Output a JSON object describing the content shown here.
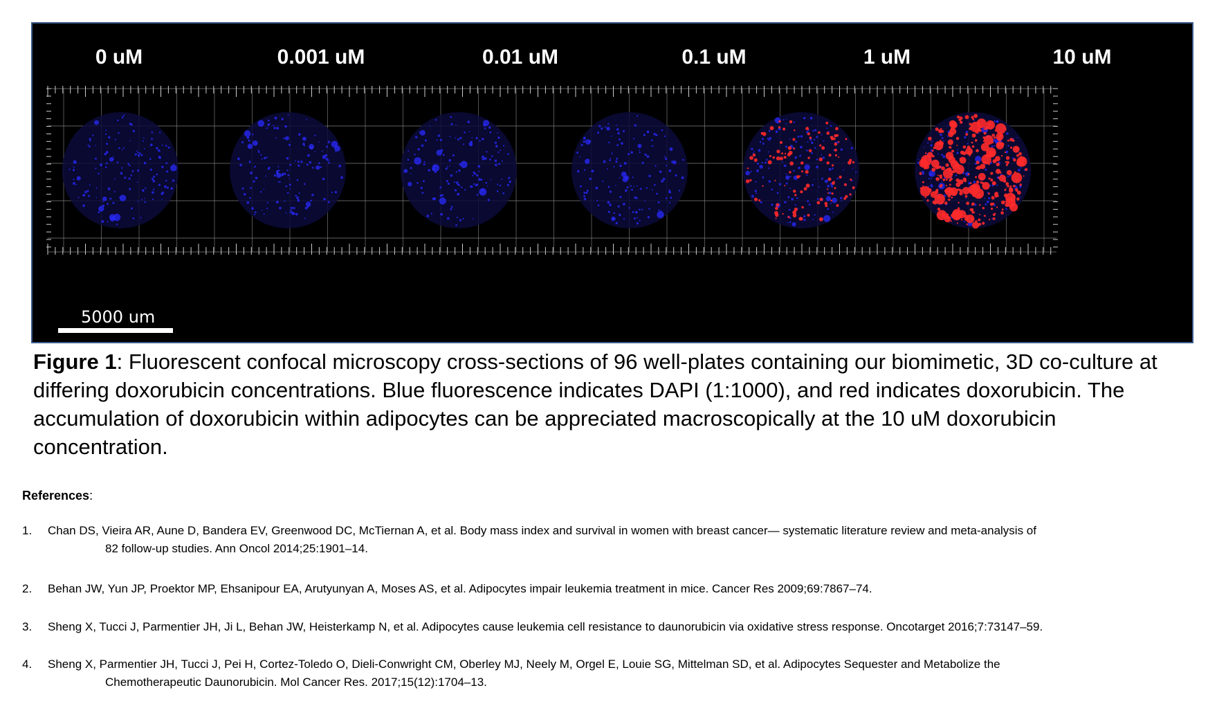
{
  "figure": {
    "concentration_labels": [
      "0 uM",
      "0.001 uM",
      "0.01 uM",
      "0.1 uM",
      "1 uM",
      "10 uM"
    ],
    "scale_bar_label": "5000 um",
    "colors": {
      "background": "#000000",
      "dapi_blue": "#2a2aff",
      "doxorubicin_red": "#ff2a2a",
      "grid": "#8a8a8a"
    },
    "red_signal_level": [
      0,
      0,
      0,
      0,
      0.35,
      1.0
    ]
  },
  "caption": {
    "label": "Figure 1",
    "text": ": Fluorescent confocal microscopy cross-sections of 96 well-plates containing our biomimetic, 3D co-culture at differing doxorubicin concentrations. Blue fluorescence indicates DAPI (1:1000), and red indicates doxorubicin. The accumulation of doxorubicin within adipocytes can be appreciated macroscopically at the 10 uM doxorubicin concentration."
  },
  "references": {
    "heading": "References",
    "colon": ":",
    "items": [
      {
        "num": "1.",
        "line1": "Chan DS, Vieira AR, Aune D, Bandera EV, Greenwood DC, McTiernan A, et al. Body mass index and survival in women with breast cancer— systematic literature review and meta-analysis of",
        "line2": "82 follow-up studies. Ann Oncol 2014;25:1901–14."
      },
      {
        "num": "2.",
        "line1": "Behan JW, Yun JP, Proektor MP, Ehsanipour EA, Arutyunyan A, Moses AS, et al. Adipocytes impair leukemia treatment in mice. Cancer Res 2009;69:7867–74.",
        "line2": ""
      },
      {
        "num": "3.",
        "line1": "Sheng X, Tucci J, Parmentier JH, Ji L, Behan JW, Heisterkamp N, et al. Adipocytes cause leukemia cell resistance to daunorubicin via oxidative stress response. Oncotarget 2016;7:73147–59.",
        "line2": ""
      },
      {
        "num": "4.",
        "line1": "Sheng X, Parmentier JH, Tucci J, Pei H, Cortez-Toledo O, Dieli-Conwright CM, Oberley MJ, Neely M, Orgel E, Louie SG, Mittelman SD, et al. Adipocytes Sequester and Metabolize the",
        "line2": "Chemotherapeutic Daunorubicin. Mol Cancer Res. 2017;15(12):1704–13."
      }
    ]
  }
}
